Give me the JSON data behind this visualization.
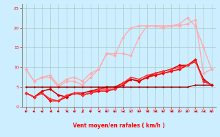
{
  "xlabel": "Vent moyen/en rafales ( km/h )",
  "background_color": "#cceeff",
  "grid_color": "#aacccc",
  "xlim": [
    -0.5,
    23.5
  ],
  "ylim": [
    0,
    26
  ],
  "xticks": [
    0,
    1,
    2,
    3,
    4,
    5,
    6,
    7,
    8,
    9,
    10,
    11,
    12,
    13,
    14,
    15,
    16,
    17,
    18,
    19,
    20,
    21,
    22,
    23
  ],
  "yticks": [
    0,
    5,
    10,
    15,
    20,
    25
  ],
  "series": [
    {
      "x": [
        0,
        1,
        2,
        3,
        4,
        5,
        6,
        7,
        8,
        9,
        10,
        11,
        12,
        13,
        14,
        15,
        16,
        17,
        18,
        19,
        20,
        21,
        22,
        23
      ],
      "y": [
        9.5,
        6.5,
        7.5,
        7.5,
        5.0,
        6.5,
        6.5,
        5.5,
        7.5,
        9.5,
        13.5,
        13.0,
        17.5,
        20.0,
        20.5,
        20.5,
        20.5,
        20.5,
        20.5,
        21.0,
        22.5,
        20.5,
        15.0,
        9.5
      ],
      "color": "#ffaaaa",
      "lw": 1.0,
      "ms": 2.5
    },
    {
      "x": [
        0,
        1,
        2,
        3,
        4,
        5,
        6,
        7,
        8,
        9,
        10,
        11,
        12,
        13,
        14,
        15,
        16,
        17,
        18,
        19,
        20,
        21,
        22,
        23
      ],
      "y": [
        9.5,
        6.5,
        7.5,
        8.0,
        5.5,
        7.0,
        7.5,
        6.5,
        8.5,
        9.5,
        13.5,
        13.5,
        13.5,
        13.0,
        17.5,
        20.5,
        20.5,
        20.0,
        20.5,
        20.5,
        21.0,
        22.0,
        8.5,
        9.5
      ],
      "color": "#ffaaaa",
      "lw": 1.0,
      "ms": 2.5
    },
    {
      "x": [
        0,
        1,
        2,
        3,
        4,
        5,
        6,
        7,
        8,
        9,
        10,
        11,
        12,
        13,
        14,
        15,
        16,
        17,
        18,
        19,
        20,
        21,
        22,
        23
      ],
      "y": [
        3.5,
        2.5,
        3.5,
        1.5,
        1.5,
        2.5,
        3.5,
        3.0,
        3.5,
        4.0,
        4.0,
        4.5,
        5.5,
        7.0,
        6.5,
        7.5,
        8.0,
        8.5,
        9.0,
        9.5,
        10.5,
        12.0,
        6.5,
        5.5
      ],
      "color": "#ff0000",
      "lw": 1.2,
      "ms": 2.5
    },
    {
      "x": [
        0,
        1,
        2,
        3,
        4,
        5,
        6,
        7,
        8,
        9,
        10,
        11,
        12,
        13,
        14,
        15,
        16,
        17,
        18,
        19,
        20,
        21,
        22,
        23
      ],
      "y": [
        3.5,
        2.5,
        4.0,
        4.5,
        3.0,
        2.5,
        3.5,
        3.5,
        4.0,
        4.5,
        5.0,
        5.0,
        6.0,
        7.0,
        6.5,
        7.5,
        8.5,
        9.0,
        9.5,
        10.5,
        10.5,
        11.5,
        7.0,
        5.5
      ],
      "color": "#dd0000",
      "lw": 1.2,
      "ms": 2.5
    },
    {
      "x": [
        0,
        1,
        2,
        3,
        4,
        5,
        6,
        7,
        8,
        9,
        10,
        11,
        12,
        13,
        14,
        15,
        16,
        17,
        18,
        19,
        20,
        21,
        22,
        23
      ],
      "y": [
        3.5,
        2.5,
        3.5,
        2.0,
        1.5,
        3.0,
        3.5,
        3.0,
        3.5,
        4.5,
        4.5,
        4.5,
        6.0,
        7.5,
        7.0,
        8.0,
        8.5,
        9.0,
        9.5,
        10.0,
        10.5,
        11.5,
        6.5,
        5.5
      ],
      "color": "#ff3333",
      "lw": 1.0,
      "ms": 2.0
    },
    {
      "x": [
        0,
        1,
        2,
        3,
        4,
        5,
        6,
        7,
        8,
        9,
        10,
        11,
        12,
        13,
        14,
        15,
        16,
        17,
        18,
        19,
        20,
        21,
        22,
        23
      ],
      "y": [
        5.0,
        5.0,
        5.0,
        5.0,
        5.0,
        5.0,
        5.0,
        5.0,
        5.0,
        5.0,
        5.0,
        5.0,
        5.0,
        5.0,
        5.0,
        5.0,
        5.0,
        5.0,
        5.0,
        5.0,
        5.0,
        5.5,
        5.5,
        5.5
      ],
      "color": "#990000",
      "lw": 1.0,
      "ms": 1.5
    }
  ],
  "wind_angles": [
    225,
    225,
    225,
    270,
    225,
    270,
    225,
    180,
    225,
    270,
    225,
    225,
    270,
    315,
    225,
    270,
    270,
    225,
    270,
    315,
    315,
    270,
    270,
    225
  ]
}
